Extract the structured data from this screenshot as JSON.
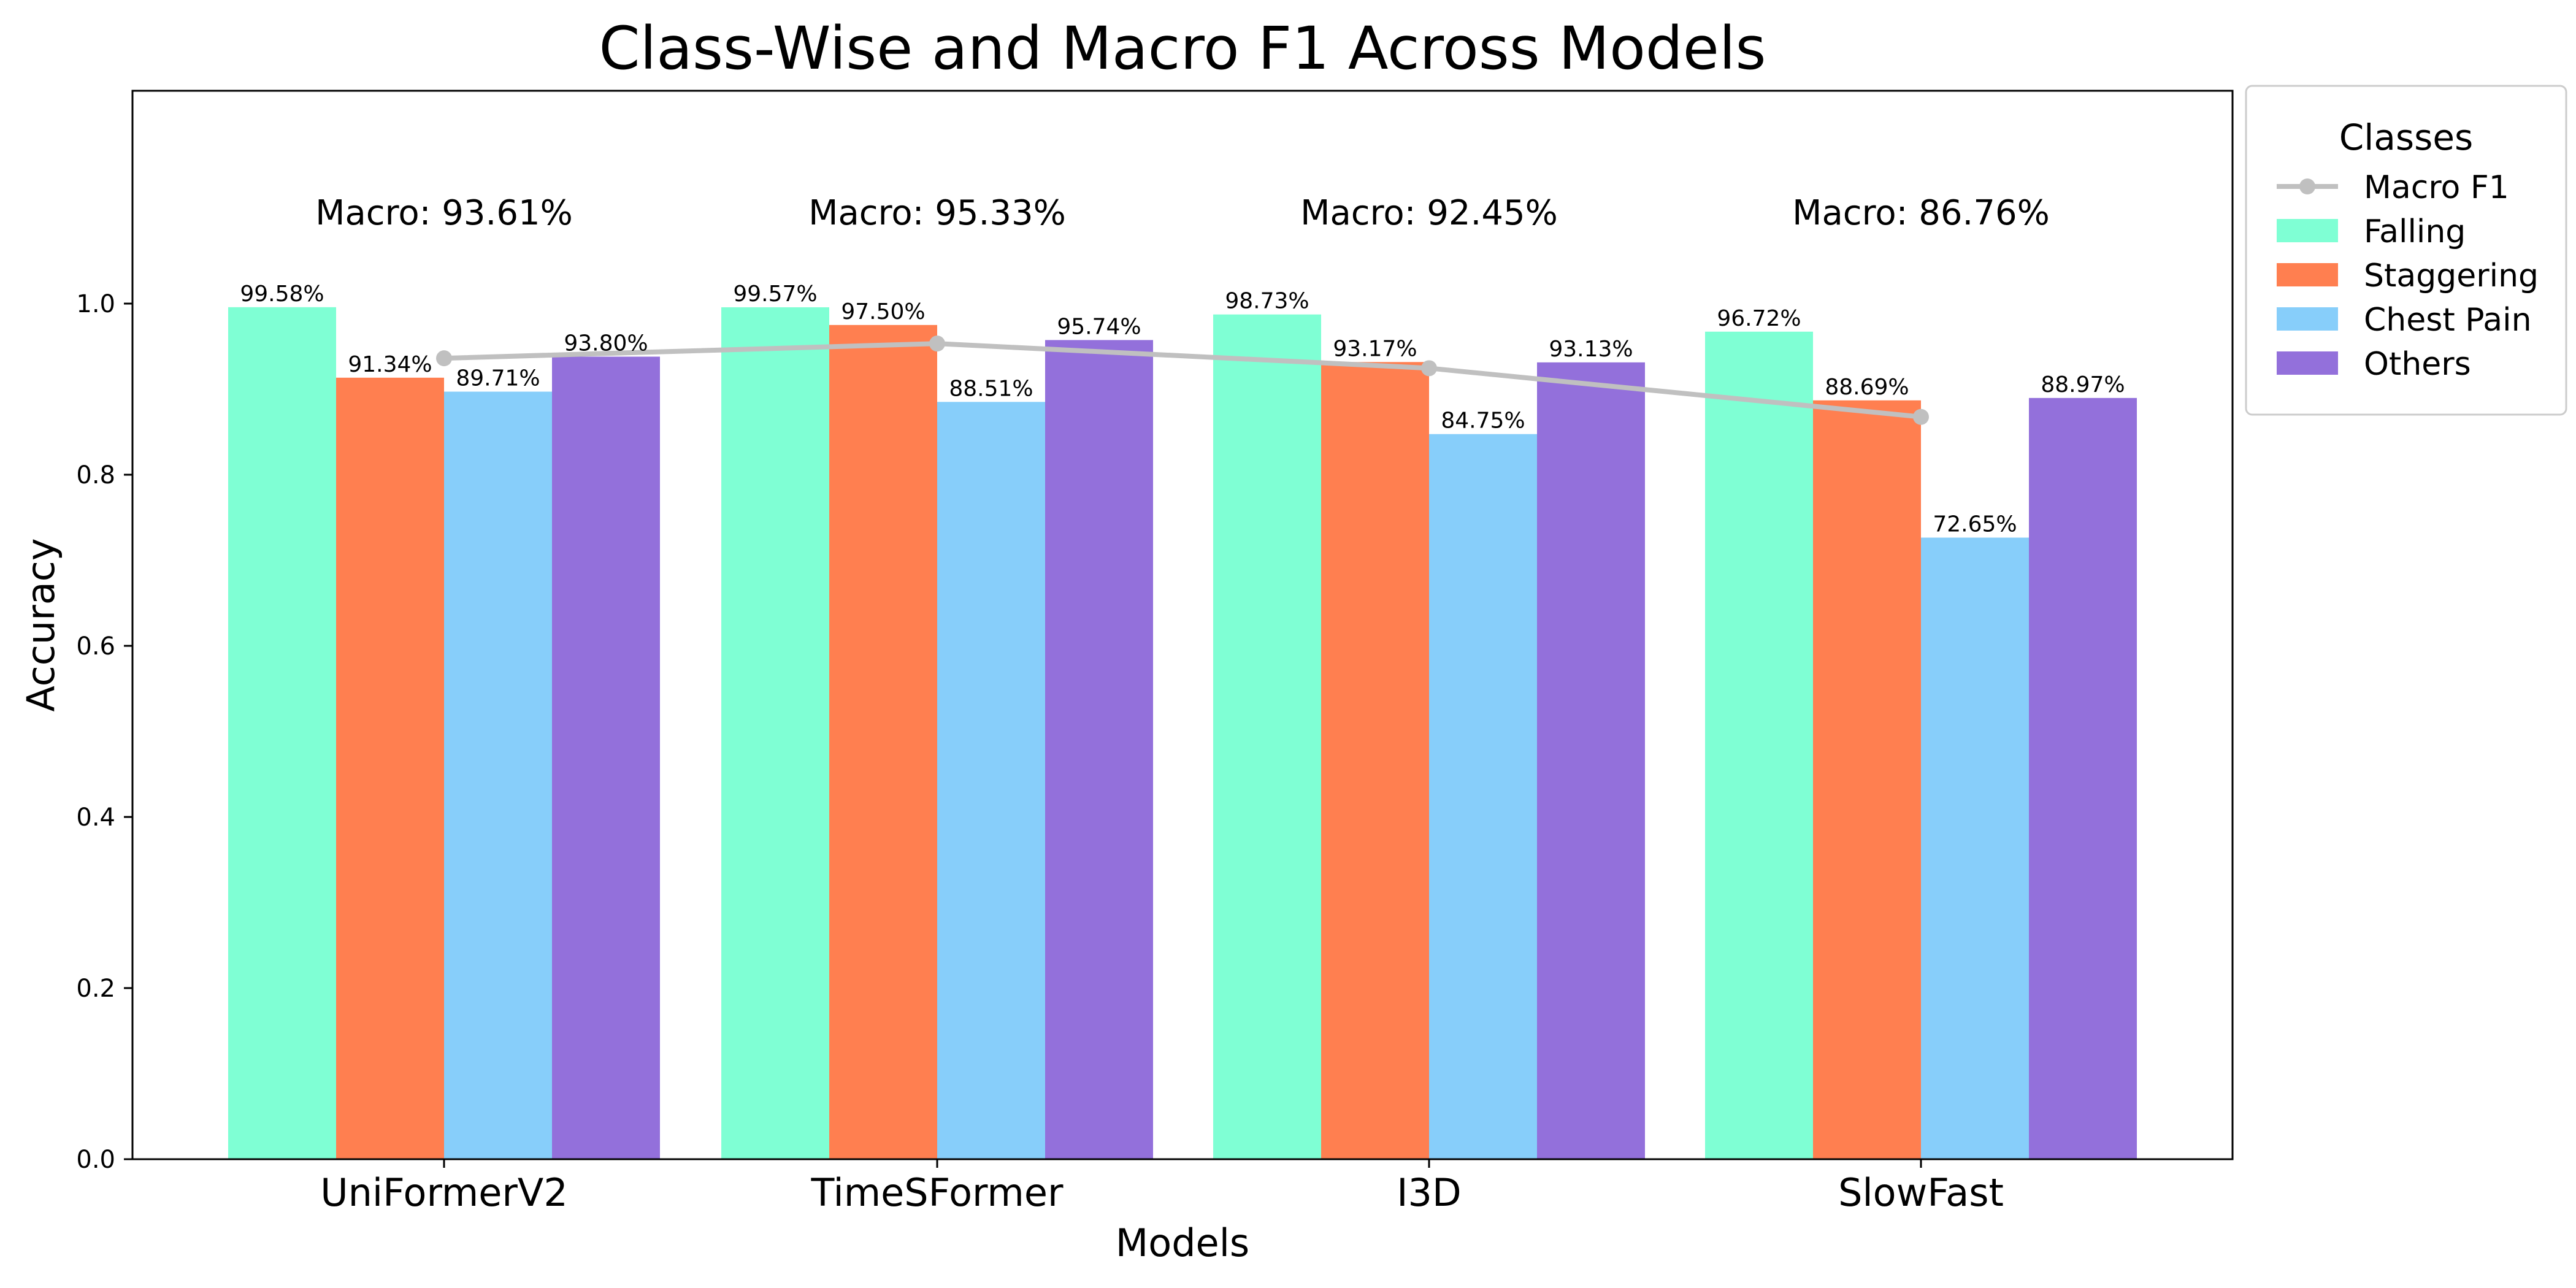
{
  "chart_data": {
    "type": "bar",
    "title": "Class-Wise and Macro F1 Across Models",
    "xlabel": "Models",
    "ylabel": "Accuracy",
    "ylim": [
      0,
      1.25
    ],
    "yticks": [
      "0.0",
      "0.2",
      "0.4",
      "0.6",
      "0.8",
      "1.0"
    ],
    "ytick_values": [
      0,
      0.2,
      0.4,
      0.6,
      0.8,
      1.0
    ],
    "grid": false,
    "categories": [
      "UniFormerV2",
      "TimeSFormer",
      "I3D",
      "SlowFast"
    ],
    "series": [
      {
        "name": "Falling",
        "color": "#7fffd4",
        "values": [
          0.9958,
          0.9957,
          0.9873,
          0.9672
        ],
        "labels": [
          "99.58%",
          "99.57%",
          "98.73%",
          "96.72%"
        ]
      },
      {
        "name": "Staggering",
        "color": "#ff7f50",
        "values": [
          0.9134,
          0.975,
          0.9317,
          0.8869
        ],
        "labels": [
          "91.34%",
          "97.50%",
          "93.17%",
          "88.69%"
        ]
      },
      {
        "name": "Chest Pain",
        "color": "#87cefa",
        "values": [
          0.8971,
          0.8851,
          0.8475,
          0.7265
        ],
        "labels": [
          "89.71%",
          "88.51%",
          "84.75%",
          "72.65%"
        ]
      },
      {
        "name": "Others",
        "color": "#9370db",
        "values": [
          0.938,
          0.9574,
          0.9313,
          0.8897
        ],
        "labels": [
          "93.80%",
          "95.74%",
          "93.13%",
          "88.97%"
        ]
      }
    ],
    "macro": {
      "name": "Macro F1",
      "type": "line",
      "color": "#c0c0c0",
      "values": [
        0.9361,
        0.9533,
        0.9245,
        0.8676
      ],
      "labels": [
        "Macro: 93.61%",
        "Macro: 95.33%",
        "Macro: 92.45%",
        "Macro: 86.76%"
      ]
    },
    "legend": {
      "title": "Classes",
      "placement": "outside-right-top",
      "entries": [
        "Macro F1",
        "Falling",
        "Staggering",
        "Chest Pain",
        "Others"
      ]
    }
  }
}
